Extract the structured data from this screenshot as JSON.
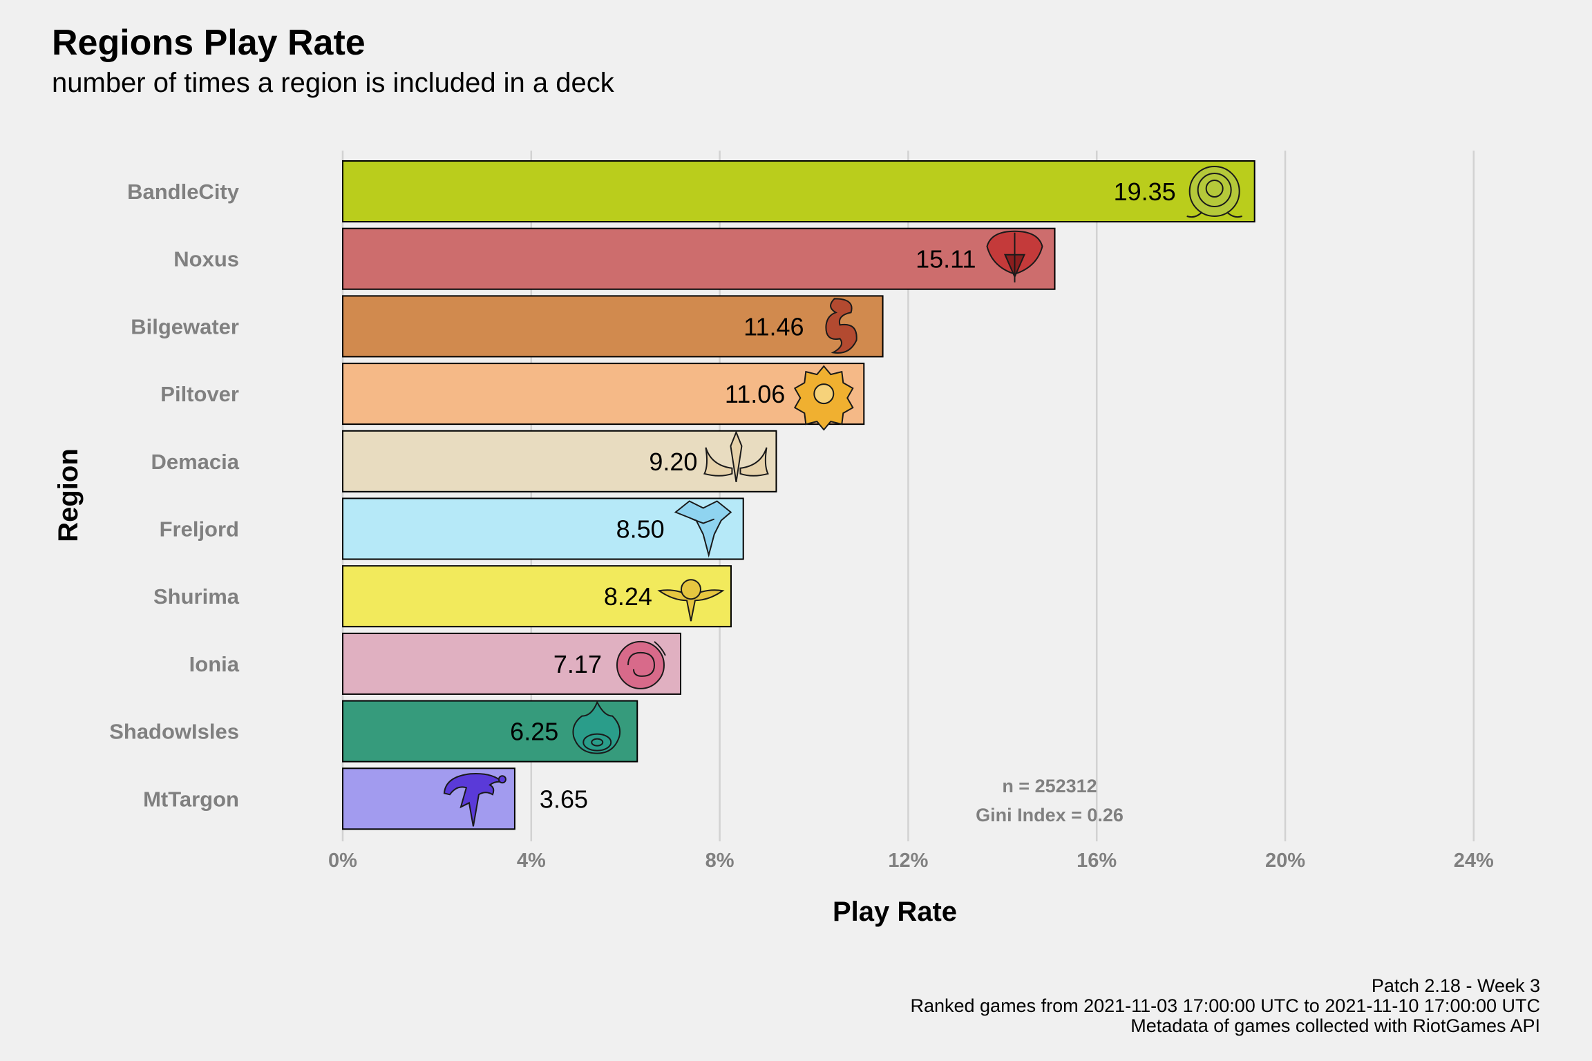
{
  "title": "Regions Play Rate",
  "subtitle": "number of times a region is included in a deck",
  "caption": [
    "Patch 2.18 - Week 3",
    "Ranked games from 2021-11-03 17:00:00 UTC to 2021-11-10 17:00:00 UTC",
    "Metadata of games collected with RiotGames API"
  ],
  "chart_data": {
    "type": "bar",
    "orientation": "horizontal",
    "title": "Regions Play Rate",
    "subtitle": "number of times a region is included in a deck",
    "xlabel": "Play Rate",
    "ylabel": "Region",
    "xlim": [
      0,
      24
    ],
    "xticks": [
      0,
      4,
      8,
      12,
      16,
      20,
      24
    ],
    "xtick_labels": [
      "0%",
      "4%",
      "8%",
      "12%",
      "16%",
      "20%",
      "24%"
    ],
    "grid": "vertical major",
    "categories": [
      "BandleCity",
      "Noxus",
      "Bilgewater",
      "Piltover",
      "Demacia",
      "Freljord",
      "Shurima",
      "Ionia",
      "ShadowIsles",
      "MtTargon"
    ],
    "category_labels": [
      "BandleCity",
      "Noxus",
      "Bilgewater",
      "Piltover",
      "Demacia",
      "Freljord",
      "Shurima",
      "Ionia",
      "ShadowIsles",
      "MtTargon"
    ],
    "values": [
      19.35,
      15.11,
      11.46,
      11.06,
      9.2,
      8.5,
      8.24,
      7.17,
      6.25,
      3.65
    ],
    "value_labels": [
      "19.35",
      "15.11",
      "11.46",
      "11.06",
      "9.20",
      "8.50",
      "8.24",
      "7.17",
      "6.25",
      "3.65"
    ],
    "colors": [
      "#bacd1c",
      "#cd6d6d",
      "#d18a4e",
      "#f5b987",
      "#e8dcc0",
      "#b6e9f8",
      "#f2ea5c",
      "#e0b0c1",
      "#369b7c",
      "#a29bef"
    ],
    "icon_colors": [
      "#b5c93a",
      "#c43a3a",
      "#b34a30",
      "#f0b030",
      "#e6d2aa",
      "#8fd4f0",
      "#e6c640",
      "#d86a8a",
      "#2a9d8a",
      "#5a3ad8"
    ],
    "icons": [
      "bandlecity-icon",
      "noxus-icon",
      "bilgewater-icon",
      "piltover-icon",
      "demacia-icon",
      "freljord-icon",
      "shurima-icon",
      "ionia-icon",
      "shadowisles-icon",
      "mttargon-icon"
    ],
    "annotation": [
      "n = 252312",
      "Gini Index = 0.26"
    ]
  }
}
